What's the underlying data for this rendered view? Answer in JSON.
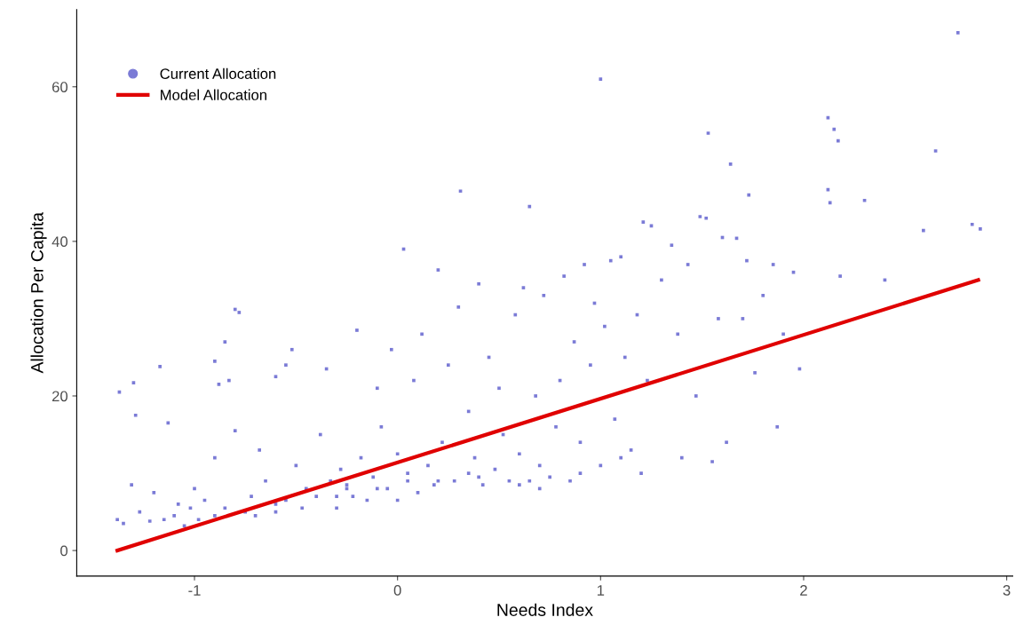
{
  "chart_data": {
    "type": "scatter",
    "xlabel": "Needs Index",
    "ylabel": "Allocation Per Capita",
    "xlim": [
      -1.58,
      3.03
    ],
    "ylim": [
      -3.3,
      70
    ],
    "xticks": [
      -1,
      0,
      1,
      2,
      3
    ],
    "yticks": [
      0,
      20,
      40,
      60
    ],
    "grid": false,
    "legend": "top left",
    "series": [
      {
        "name": "Current Allocation",
        "color": "#7b7bd6",
        "marker": "square",
        "x": [
          -1.38,
          -1.35,
          -1.37,
          -1.3,
          -1.29,
          -1.31,
          -1.27,
          -1.22,
          -1.2,
          -1.17,
          -1.13,
          -1.1,
          -1.08,
          -1.05,
          -1.02,
          -1.0,
          -0.98,
          -0.95,
          -0.9,
          -0.9,
          -0.88,
          -0.85,
          -0.83,
          -0.8,
          -0.78,
          -0.8,
          -0.75,
          -0.72,
          -0.7,
          -0.68,
          -0.65,
          -0.6,
          -0.6,
          -0.55,
          -0.52,
          -0.5,
          -0.47,
          -0.45,
          -0.4,
          -0.38,
          -0.35,
          -0.33,
          -0.3,
          -0.28,
          -0.25,
          -0.22,
          -0.2,
          -0.18,
          -0.15,
          -0.12,
          -0.1,
          -0.08,
          -0.05,
          -0.03,
          0.0,
          0.0,
          0.03,
          0.05,
          0.08,
          0.1,
          0.12,
          0.15,
          0.18,
          0.2,
          0.22,
          0.25,
          0.28,
          0.3,
          0.31,
          0.35,
          0.38,
          0.4,
          0.42,
          0.45,
          0.48,
          0.5,
          0.52,
          0.55,
          0.58,
          0.6,
          0.62,
          0.65,
          0.68,
          0.7,
          0.72,
          0.75,
          0.78,
          0.8,
          0.82,
          0.85,
          0.87,
          0.9,
          0.92,
          0.95,
          0.97,
          1.0,
          1.0,
          1.02,
          1.05,
          1.07,
          1.1,
          1.12,
          1.15,
          1.18,
          1.2,
          1.21,
          1.23,
          1.25,
          1.3,
          1.35,
          1.38,
          1.4,
          1.43,
          1.47,
          1.49,
          1.52,
          1.53,
          1.55,
          1.58,
          1.6,
          1.62,
          1.64,
          1.67,
          1.7,
          1.72,
          1.73,
          1.76,
          1.8,
          1.85,
          1.87,
          1.9,
          1.95,
          1.98,
          2.12,
          2.13,
          2.12,
          2.15,
          2.17,
          2.18,
          2.3,
          2.4,
          2.59,
          2.65,
          2.76,
          2.83,
          2.87,
          -0.9,
          -0.6,
          -0.3,
          -0.1,
          0.2,
          0.4,
          0.6,
          0.7,
          0.9,
          -1.15,
          -0.85,
          -0.55,
          -0.25,
          0.05,
          0.35,
          0.65,
          1.1
        ],
        "values": [
          4.0,
          3.5,
          20.5,
          21.7,
          17.5,
          8.5,
          5.0,
          3.8,
          7.5,
          23.8,
          16.5,
          4.5,
          6.0,
          3.2,
          5.5,
          8.0,
          4.0,
          6.5,
          12.0,
          24.5,
          21.5,
          27.0,
          22.0,
          31.2,
          30.8,
          15.5,
          5.0,
          7.0,
          4.5,
          13.0,
          9.0,
          6.0,
          22.5,
          24.0,
          26.0,
          11.0,
          5.5,
          8.0,
          7.0,
          15.0,
          23.5,
          9.0,
          5.5,
          10.5,
          8.0,
          7.0,
          28.5,
          12.0,
          6.5,
          9.5,
          21.0,
          16.0,
          8.0,
          26.0,
          12.5,
          6.5,
          39.0,
          10.0,
          22.0,
          7.5,
          28.0,
          11.0,
          8.5,
          36.3,
          14.0,
          24.0,
          9.0,
          31.5,
          46.5,
          18.0,
          12.0,
          34.5,
          8.5,
          25.0,
          10.5,
          21.0,
          15.0,
          9.0,
          30.5,
          12.5,
          34.0,
          44.5,
          20.0,
          11.0,
          33.0,
          9.5,
          16.0,
          22.0,
          35.5,
          9.0,
          27.0,
          14.0,
          37.0,
          24.0,
          32.0,
          61.0,
          11.0,
          29.0,
          37.5,
          17.0,
          38.0,
          25.0,
          13.0,
          30.5,
          10.0,
          42.5,
          22.0,
          42.0,
          35.0,
          39.5,
          28.0,
          12.0,
          37.0,
          20.0,
          43.2,
          43.0,
          54.0,
          11.5,
          30.0,
          40.5,
          14.0,
          50.0,
          40.4,
          30.0,
          37.5,
          46.0,
          23.0,
          33.0,
          37.0,
          16.0,
          28.0,
          36.0,
          23.5,
          46.7,
          45.0,
          56.0,
          54.5,
          53.0,
          35.5,
          45.3,
          35.0,
          41.4,
          51.7,
          67.0,
          42.2,
          41.6,
          4.5,
          5.0,
          7.0,
          8.0,
          9.0,
          9.5,
          8.5,
          8.0,
          10.0,
          4.0,
          5.5,
          6.5,
          8.5,
          9.0,
          10.0,
          9.0,
          12.0
        ]
      },
      {
        "name": "Model Allocation",
        "type": "line",
        "color": "#e00000",
        "marker": "none",
        "line_style": "solid",
        "x": [
          -1.38,
          2.86
        ],
        "values": [
          0,
          35
        ]
      }
    ]
  }
}
